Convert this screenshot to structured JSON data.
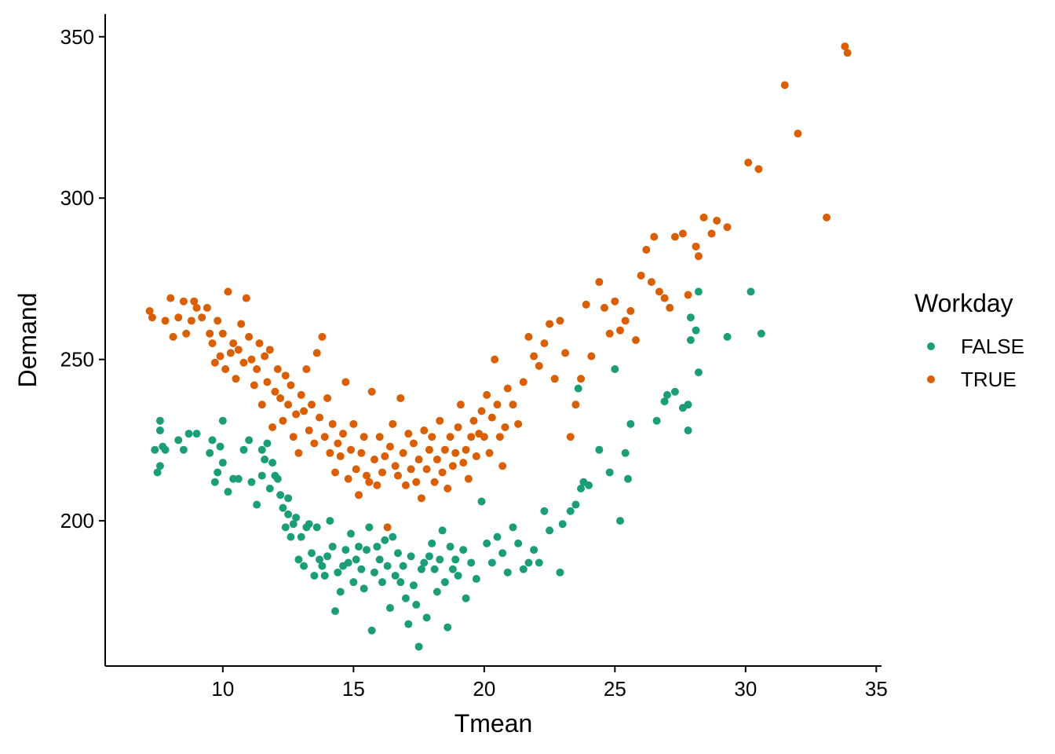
{
  "chart_data": {
    "type": "scatter",
    "title": "",
    "xlabel": "Tmean",
    "ylabel": "Demand",
    "xlim": [
      5.5,
      35.2
    ],
    "ylim": [
      155,
      357
    ],
    "xticks": [
      10,
      15,
      20,
      25,
      30,
      35
    ],
    "yticks": [
      200,
      250,
      300,
      350
    ],
    "grid": false,
    "legend": {
      "title": "Workday",
      "placement": "right"
    },
    "series": [
      {
        "name": "FALSE",
        "color": "#1b9e77",
        "points": [
          [
            7.4,
            222
          ],
          [
            7.5,
            215
          ],
          [
            7.6,
            228
          ],
          [
            7.6,
            231
          ],
          [
            7.7,
            223
          ],
          [
            7.6,
            217
          ],
          [
            7.8,
            222
          ],
          [
            8.3,
            225
          ],
          [
            8.5,
            222
          ],
          [
            8.7,
            227
          ],
          [
            9.0,
            227
          ],
          [
            9.5,
            221
          ],
          [
            9.6,
            225
          ],
          [
            9.7,
            212
          ],
          [
            9.8,
            215
          ],
          [
            9.9,
            223
          ],
          [
            10.0,
            218
          ],
          [
            10.0,
            231
          ],
          [
            10.2,
            209
          ],
          [
            10.4,
            213
          ],
          [
            10.6,
            213
          ],
          [
            10.8,
            222
          ],
          [
            11.0,
            225
          ],
          [
            11.1,
            212
          ],
          [
            11.3,
            205
          ],
          [
            11.5,
            214
          ],
          [
            11.5,
            222
          ],
          [
            11.6,
            219
          ],
          [
            11.7,
            224
          ],
          [
            11.8,
            210
          ],
          [
            11.9,
            218
          ],
          [
            12.0,
            214
          ],
          [
            12.1,
            213
          ],
          [
            12.2,
            208
          ],
          [
            12.3,
            204
          ],
          [
            12.4,
            198
          ],
          [
            12.5,
            202
          ],
          [
            12.5,
            207
          ],
          [
            12.6,
            195
          ],
          [
            12.7,
            199
          ],
          [
            12.8,
            201
          ],
          [
            12.9,
            188
          ],
          [
            13.0,
            195
          ],
          [
            13.1,
            186
          ],
          [
            13.2,
            198
          ],
          [
            13.3,
            199
          ],
          [
            13.4,
            190
          ],
          [
            13.5,
            183
          ],
          [
            13.6,
            198
          ],
          [
            13.7,
            188
          ],
          [
            13.8,
            186
          ],
          [
            13.9,
            183
          ],
          [
            14.0,
            189
          ],
          [
            14.1,
            200
          ],
          [
            14.2,
            192
          ],
          [
            14.3,
            172
          ],
          [
            14.4,
            184
          ],
          [
            14.5,
            178
          ],
          [
            14.6,
            186
          ],
          [
            14.7,
            191
          ],
          [
            14.8,
            187
          ],
          [
            14.9,
            196
          ],
          [
            15.0,
            181
          ],
          [
            15.1,
            188
          ],
          [
            15.2,
            192
          ],
          [
            15.3,
            185
          ],
          [
            15.4,
            179
          ],
          [
            15.5,
            191
          ],
          [
            15.6,
            198
          ],
          [
            15.7,
            166
          ],
          [
            15.8,
            184
          ],
          [
            15.9,
            192
          ],
          [
            16.0,
            188
          ],
          [
            16.1,
            181
          ],
          [
            16.2,
            194
          ],
          [
            16.3,
            186
          ],
          [
            16.4,
            173
          ],
          [
            16.5,
            195
          ],
          [
            16.6,
            183
          ],
          [
            16.7,
            190
          ],
          [
            16.8,
            181
          ],
          [
            16.9,
            186
          ],
          [
            17.0,
            176
          ],
          [
            17.1,
            168
          ],
          [
            17.2,
            189
          ],
          [
            17.3,
            180
          ],
          [
            17.4,
            174
          ],
          [
            17.5,
            161
          ],
          [
            17.6,
            185
          ],
          [
            17.7,
            187
          ],
          [
            17.8,
            170
          ],
          [
            17.9,
            189
          ],
          [
            18.0,
            193
          ],
          [
            18.1,
            185
          ],
          [
            18.2,
            178
          ],
          [
            18.3,
            188
          ],
          [
            18.4,
            197
          ],
          [
            18.5,
            181
          ],
          [
            18.6,
            167
          ],
          [
            18.7,
            192
          ],
          [
            18.8,
            185
          ],
          [
            18.9,
            188
          ],
          [
            19.0,
            183
          ],
          [
            19.2,
            191
          ],
          [
            19.3,
            176
          ],
          [
            19.5,
            187
          ],
          [
            19.7,
            182
          ],
          [
            19.9,
            206
          ],
          [
            20.1,
            193
          ],
          [
            20.3,
            187
          ],
          [
            20.5,
            195
          ],
          [
            20.7,
            190
          ],
          [
            20.9,
            184
          ],
          [
            21.1,
            198
          ],
          [
            21.3,
            193
          ],
          [
            21.5,
            185
          ],
          [
            21.7,
            187
          ],
          [
            21.9,
            191
          ],
          [
            22.1,
            187
          ],
          [
            22.3,
            203
          ],
          [
            22.5,
            197
          ],
          [
            22.9,
            184
          ],
          [
            23.0,
            199
          ],
          [
            23.3,
            203
          ],
          [
            23.5,
            205
          ],
          [
            23.6,
            241
          ],
          [
            23.7,
            210
          ],
          [
            23.8,
            212
          ],
          [
            24.0,
            211
          ],
          [
            24.4,
            222
          ],
          [
            24.8,
            215
          ],
          [
            25.0,
            247
          ],
          [
            25.2,
            200
          ],
          [
            25.4,
            221
          ],
          [
            25.5,
            213
          ],
          [
            25.6,
            230
          ],
          [
            26.6,
            231
          ],
          [
            26.9,
            237
          ],
          [
            27.0,
            239
          ],
          [
            27.3,
            240
          ],
          [
            27.6,
            235
          ],
          [
            27.8,
            228
          ],
          [
            27.8,
            236
          ],
          [
            27.9,
            256
          ],
          [
            27.9,
            263
          ],
          [
            28.1,
            259
          ],
          [
            28.2,
            246
          ],
          [
            28.2,
            271
          ],
          [
            29.3,
            257
          ],
          [
            30.2,
            271
          ],
          [
            30.6,
            258
          ]
        ]
      },
      {
        "name": "TRUE",
        "color": "#d95f02",
        "points": [
          [
            7.2,
            265
          ],
          [
            7.3,
            263
          ],
          [
            7.8,
            262
          ],
          [
            8.0,
            269
          ],
          [
            8.1,
            257
          ],
          [
            8.3,
            263
          ],
          [
            8.5,
            268
          ],
          [
            8.6,
            258
          ],
          [
            8.8,
            262
          ],
          [
            8.9,
            268
          ],
          [
            9.0,
            266
          ],
          [
            9.2,
            263
          ],
          [
            9.4,
            266
          ],
          [
            9.5,
            258
          ],
          [
            9.6,
            255
          ],
          [
            9.7,
            249
          ],
          [
            9.8,
            262
          ],
          [
            9.9,
            251
          ],
          [
            10.0,
            258
          ],
          [
            10.1,
            247
          ],
          [
            10.2,
            271
          ],
          [
            10.3,
            252
          ],
          [
            10.4,
            255
          ],
          [
            10.5,
            244
          ],
          [
            10.6,
            253
          ],
          [
            10.7,
            261
          ],
          [
            10.8,
            249
          ],
          [
            10.9,
            269
          ],
          [
            11.0,
            257
          ],
          [
            11.1,
            250
          ],
          [
            11.2,
            242
          ],
          [
            11.3,
            247
          ],
          [
            11.4,
            255
          ],
          [
            11.5,
            236
          ],
          [
            11.6,
            251
          ],
          [
            11.7,
            243
          ],
          [
            11.8,
            253
          ],
          [
            11.9,
            229
          ],
          [
            12.0,
            240
          ],
          [
            12.1,
            247
          ],
          [
            12.2,
            238
          ],
          [
            12.3,
            231
          ],
          [
            12.4,
            245
          ],
          [
            12.5,
            236
          ],
          [
            12.6,
            242
          ],
          [
            12.7,
            226
          ],
          [
            12.8,
            233
          ],
          [
            12.9,
            221
          ],
          [
            13.0,
            239
          ],
          [
            13.1,
            234
          ],
          [
            13.2,
            247
          ],
          [
            13.3,
            228
          ],
          [
            13.4,
            236
          ],
          [
            13.5,
            224
          ],
          [
            13.6,
            252
          ],
          [
            13.7,
            232
          ],
          [
            13.8,
            257
          ],
          [
            13.9,
            226
          ],
          [
            14.0,
            238
          ],
          [
            14.1,
            221
          ],
          [
            14.2,
            230
          ],
          [
            14.3,
            215
          ],
          [
            14.4,
            224
          ],
          [
            14.5,
            220
          ],
          [
            14.6,
            227
          ],
          [
            14.7,
            243
          ],
          [
            14.8,
            213
          ],
          [
            14.9,
            222
          ],
          [
            15.0,
            230
          ],
          [
            15.1,
            216
          ],
          [
            15.2,
            208
          ],
          [
            15.3,
            221
          ],
          [
            15.4,
            226
          ],
          [
            15.5,
            214
          ],
          [
            15.6,
            212
          ],
          [
            15.7,
            240
          ],
          [
            15.8,
            219
          ],
          [
            15.9,
            211
          ],
          [
            16.0,
            226
          ],
          [
            16.1,
            215
          ],
          [
            16.2,
            220
          ],
          [
            16.3,
            198
          ],
          [
            16.4,
            223
          ],
          [
            16.5,
            230
          ],
          [
            16.6,
            217
          ],
          [
            16.7,
            214
          ],
          [
            16.8,
            238
          ],
          [
            16.9,
            221
          ],
          [
            17.0,
            211
          ],
          [
            17.1,
            227
          ],
          [
            17.2,
            216
          ],
          [
            17.3,
            224
          ],
          [
            17.4,
            212
          ],
          [
            17.5,
            219
          ],
          [
            17.6,
            207
          ],
          [
            17.7,
            228
          ],
          [
            17.8,
            216
          ],
          [
            17.9,
            222
          ],
          [
            18.0,
            226
          ],
          [
            18.1,
            212
          ],
          [
            18.2,
            219
          ],
          [
            18.3,
            231
          ],
          [
            18.4,
            215
          ],
          [
            18.5,
            222
          ],
          [
            18.6,
            210
          ],
          [
            18.7,
            226
          ],
          [
            18.8,
            217
          ],
          [
            18.9,
            221
          ],
          [
            19.0,
            229
          ],
          [
            19.1,
            236
          ],
          [
            19.2,
            218
          ],
          [
            19.3,
            222
          ],
          [
            19.4,
            213
          ],
          [
            19.5,
            226
          ],
          [
            19.6,
            231
          ],
          [
            19.7,
            220
          ],
          [
            19.8,
            227
          ],
          [
            19.9,
            234
          ],
          [
            20.0,
            226
          ],
          [
            20.1,
            239
          ],
          [
            20.2,
            221
          ],
          [
            20.3,
            232
          ],
          [
            20.4,
            250
          ],
          [
            20.5,
            236
          ],
          [
            20.6,
            226
          ],
          [
            20.7,
            217
          ],
          [
            20.8,
            229
          ],
          [
            20.9,
            241
          ],
          [
            21.1,
            236
          ],
          [
            21.3,
            230
          ],
          [
            21.5,
            243
          ],
          [
            21.7,
            257
          ],
          [
            21.9,
            251
          ],
          [
            22.1,
            248
          ],
          [
            22.3,
            255
          ],
          [
            22.5,
            261
          ],
          [
            22.7,
            244
          ],
          [
            22.9,
            262
          ],
          [
            23.1,
            252
          ],
          [
            23.3,
            226
          ],
          [
            23.5,
            236
          ],
          [
            23.7,
            244
          ],
          [
            23.9,
            267
          ],
          [
            24.1,
            251
          ],
          [
            24.4,
            274
          ],
          [
            24.6,
            266
          ],
          [
            24.8,
            258
          ],
          [
            25.0,
            268
          ],
          [
            25.2,
            259
          ],
          [
            25.4,
            262
          ],
          [
            25.6,
            265
          ],
          [
            25.8,
            256
          ],
          [
            26.0,
            276
          ],
          [
            26.2,
            284
          ],
          [
            26.4,
            274
          ],
          [
            26.5,
            288
          ],
          [
            26.7,
            271
          ],
          [
            26.9,
            269
          ],
          [
            27.1,
            266
          ],
          [
            27.3,
            288
          ],
          [
            27.6,
            289
          ],
          [
            27.8,
            270
          ],
          [
            28.1,
            285
          ],
          [
            28.2,
            282
          ],
          [
            28.4,
            294
          ],
          [
            28.7,
            289
          ],
          [
            28.9,
            293
          ],
          [
            29.3,
            291
          ],
          [
            30.1,
            311
          ],
          [
            30.5,
            309
          ],
          [
            31.5,
            335
          ],
          [
            32.0,
            320
          ],
          [
            33.1,
            294
          ],
          [
            33.8,
            347
          ],
          [
            33.9,
            345
          ]
        ]
      }
    ]
  }
}
